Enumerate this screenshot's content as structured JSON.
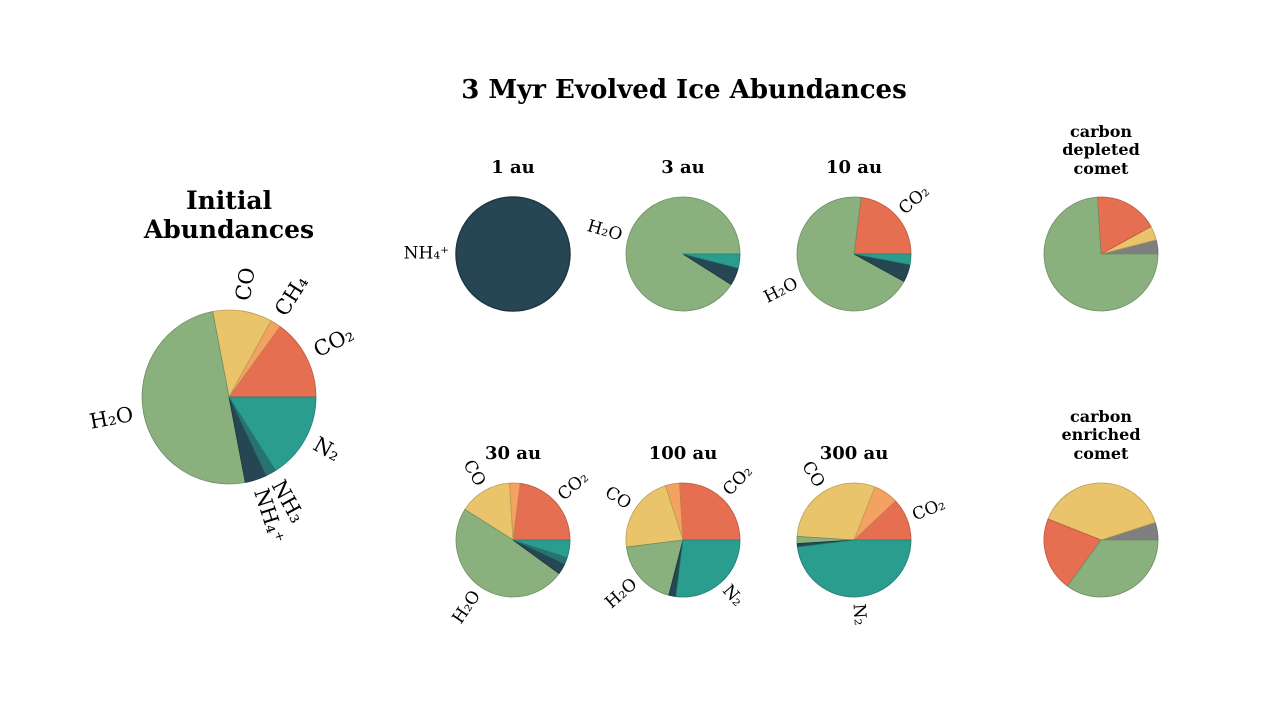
{
  "title": "3 Myr Evolved Ice Abundances",
  "chart_data": [
    {
      "type": "pie",
      "title": "Initial Abundances",
      "categories": [
        "CO₂",
        "CH₄",
        "CO",
        "H₂O",
        "NH₄⁺",
        "NH₃",
        "N₂"
      ],
      "values": [
        15,
        2,
        11,
        50,
        4,
        2,
        16
      ],
      "colors": [
        "#e76f51",
        "#f4a261",
        "#e9c46a",
        "#8ab17d",
        "#264653",
        "#287271",
        "#2a9d8f"
      ]
    },
    {
      "type": "pie",
      "title": "1 au",
      "categories": [
        "NH₄⁺"
      ],
      "values": [
        100
      ],
      "colors": [
        "#264653"
      ]
    },
    {
      "type": "pie",
      "title": "3 au",
      "categories": [
        "H₂O",
        null,
        null
      ],
      "values": [
        91,
        5,
        4
      ],
      "colors": [
        "#8ab17d",
        "#264653",
        "#2a9d8f"
      ]
    },
    {
      "type": "pie",
      "title": "10 au",
      "categories": [
        "CO₂",
        "H₂O",
        null,
        null
      ],
      "values": [
        23,
        69,
        5,
        3
      ],
      "colors": [
        "#e76f51",
        "#8ab17d",
        "#264653",
        "#2a9d8f"
      ]
    },
    {
      "type": "pie",
      "title": "carbon depleted comet",
      "categories": [
        null,
        null,
        null,
        null
      ],
      "values": [
        4,
        4,
        18,
        74
      ],
      "colors": [
        "#7f7f7f",
        "#e9c46a",
        "#e76f51",
        "#8ab17d"
      ]
    },
    {
      "type": "pie",
      "title": "30 au",
      "categories": [
        "CO₂",
        null,
        "CO",
        "H₂O",
        null,
        null,
        null
      ],
      "values": [
        23,
        3,
        15,
        49,
        3,
        2,
        5
      ],
      "colors": [
        "#e76f51",
        "#f4a261",
        "#e9c46a",
        "#8ab17d",
        "#264653",
        "#287271",
        "#2a9d8f"
      ]
    },
    {
      "type": "pie",
      "title": "100 au",
      "categories": [
        "CO₂",
        null,
        "CO",
        "H₂O",
        null,
        "N₂"
      ],
      "values": [
        26,
        4,
        22,
        19,
        2,
        27
      ],
      "colors": [
        "#e76f51",
        "#f4a261",
        "#e9c46a",
        "#8ab17d",
        "#264653",
        "#2a9d8f"
      ]
    },
    {
      "type": "pie",
      "title": "300 au",
      "categories": [
        "CO₂",
        null,
        "CO",
        null,
        null,
        "N₂"
      ],
      "values": [
        12,
        7,
        30,
        2,
        1,
        48
      ],
      "colors": [
        "#e76f51",
        "#f4a261",
        "#e9c46a",
        "#8ab17d",
        "#264653",
        "#2a9d8f"
      ]
    },
    {
      "type": "pie",
      "title": "carbon enriched comet",
      "categories": [
        null,
        null,
        null,
        null
      ],
      "values": [
        5,
        39,
        21,
        35
      ],
      "colors": [
        "#7f7f7f",
        "#e9c46a",
        "#e76f51",
        "#8ab17d"
      ]
    }
  ]
}
